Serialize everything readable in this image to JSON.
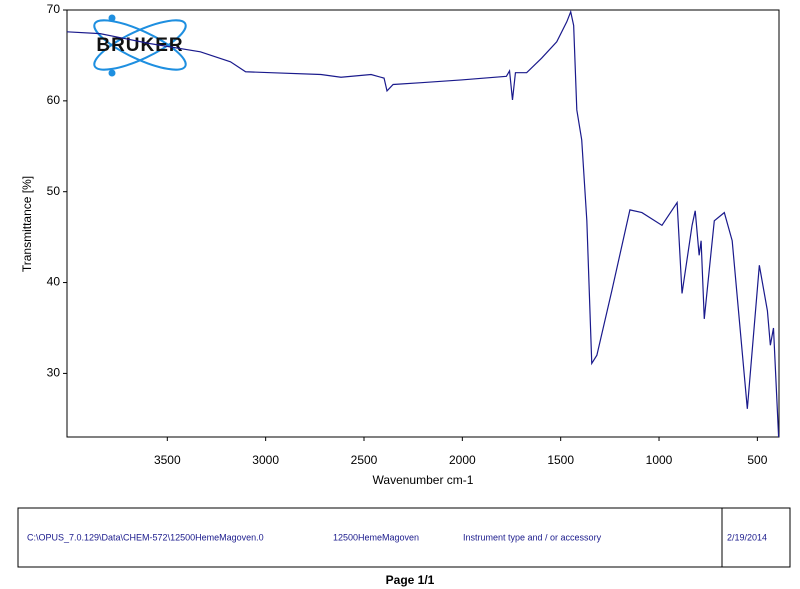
{
  "chart_data": {
    "type": "line",
    "xlabel": "Wavenumber cm-1",
    "ylabel": "Transmittance [%]",
    "x": [
      4010,
      3842,
      3587,
      3332,
      3179,
      3102,
      2974,
      2719,
      2617,
      2464,
      2398,
      2383,
      2352,
      2209,
      2005,
      1776,
      1760,
      1745,
      1730,
      1673,
      1597,
      1520,
      1469,
      1449,
      1434,
      1418,
      1393,
      1367,
      1342,
      1316,
      1240,
      1148,
      1087,
      985,
      908,
      883,
      832,
      816,
      796,
      786,
      770,
      719,
      668,
      628,
      551,
      490,
      449,
      434,
      418,
      392
    ],
    "values": [
      67.6,
      67.4,
      66.3,
      65.4,
      64.3,
      63.2,
      63.1,
      62.9,
      62.6,
      62.9,
      62.5,
      61.1,
      61.8,
      62.0,
      62.3,
      62.7,
      63.3,
      60.1,
      63.1,
      63.1,
      64.7,
      66.5,
      68.7,
      69.8,
      68.3,
      59.0,
      55.7,
      46.8,
      31.1,
      32.0,
      39.1,
      48.0,
      47.7,
      46.3,
      48.8,
      38.8,
      46.3,
      47.9,
      43.0,
      44.6,
      36.0,
      46.8,
      47.7,
      44.6,
      26.1,
      41.9,
      36.9,
      33.1,
      35.0,
      23.0
    ],
    "color": "#1a1a8c",
    "xlim": [
      4010,
      390
    ],
    "ylim": [
      23,
      70
    ],
    "xticks": [
      3500,
      3000,
      2500,
      2000,
      1500,
      1000,
      500
    ],
    "yticks": [
      30,
      40,
      50,
      60,
      70
    ]
  },
  "logo": "BRUKER",
  "footer": {
    "file": "C:\\OPUS_7.0.129\\Data\\CHEM-572\\12500HemeMagoven.0",
    "sample": "12500HemeMagoven",
    "instrument": "Instrument type and / or accessory",
    "date": "2/19/2014",
    "page": "Page 1/1"
  }
}
